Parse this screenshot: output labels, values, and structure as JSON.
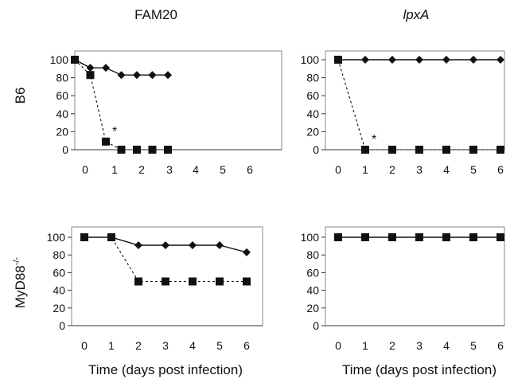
{
  "column_titles": [
    "FAM20",
    "lpxA"
  ],
  "row_labels": {
    "row1": "B6",
    "row2_base": "MyD88",
    "row2_sup": "-/-"
  },
  "xlabel": "Time (days post infection)",
  "chart_data": [
    {
      "type": "line",
      "panel": "B6 / FAM20",
      "x": [
        0,
        1,
        2,
        3,
        4,
        5,
        6
      ],
      "ylim": [
        0,
        100
      ],
      "yticks": [
        0,
        20,
        40,
        60,
        80,
        100
      ],
      "series": [
        {
          "marker": "diamond",
          "line": "solid",
          "values": [
            100,
            91,
            91,
            83,
            83,
            83,
            83
          ]
        },
        {
          "marker": "square",
          "line": "dashed",
          "values": [
            100,
            83,
            9,
            0,
            0,
            0,
            0
          ]
        }
      ],
      "annotations": [
        {
          "text": "*",
          "x": 2,
          "y": 9
        }
      ]
    },
    {
      "type": "line",
      "panel": "B6 / lpxA",
      "x": [
        0,
        1,
        2,
        3,
        4,
        5,
        6
      ],
      "ylim": [
        0,
        100
      ],
      "yticks": [
        0,
        20,
        40,
        60,
        80,
        100
      ],
      "series": [
        {
          "marker": "diamond",
          "line": "solid",
          "values": [
            100,
            100,
            100,
            100,
            100,
            100,
            100
          ]
        },
        {
          "marker": "square",
          "line": "dashed",
          "values": [
            100,
            0,
            0,
            0,
            0,
            0,
            0
          ]
        }
      ],
      "annotations": [
        {
          "text": "*",
          "x": 1,
          "y": 0
        }
      ]
    },
    {
      "type": "line",
      "panel": "MyD88-/- / FAM20",
      "x": [
        0,
        1,
        2,
        3,
        4,
        5,
        6
      ],
      "ylim": [
        0,
        100
      ],
      "yticks": [
        0,
        20,
        40,
        60,
        80,
        100
      ],
      "series": [
        {
          "marker": "diamond",
          "line": "solid",
          "values": [
            100,
            100,
            91,
            91,
            91,
            91,
            83
          ]
        },
        {
          "marker": "square",
          "line": "dashed",
          "values": [
            100,
            100,
            50,
            50,
            50,
            50,
            50
          ]
        }
      ],
      "annotations": []
    },
    {
      "type": "line",
      "panel": "MyD88-/- / lpxA",
      "x": [
        0,
        1,
        2,
        3,
        4,
        5,
        6
      ],
      "ylim": [
        0,
        100
      ],
      "yticks": [
        0,
        20,
        40,
        60,
        80,
        100
      ],
      "series": [
        {
          "marker": "diamond",
          "line": "solid",
          "values": [
            100,
            100,
            100,
            100,
            100,
            100,
            100
          ]
        },
        {
          "marker": "square",
          "line": "dashed",
          "values": [
            100,
            100,
            100,
            100,
            100,
            100,
            100
          ]
        }
      ],
      "annotations": []
    }
  ]
}
